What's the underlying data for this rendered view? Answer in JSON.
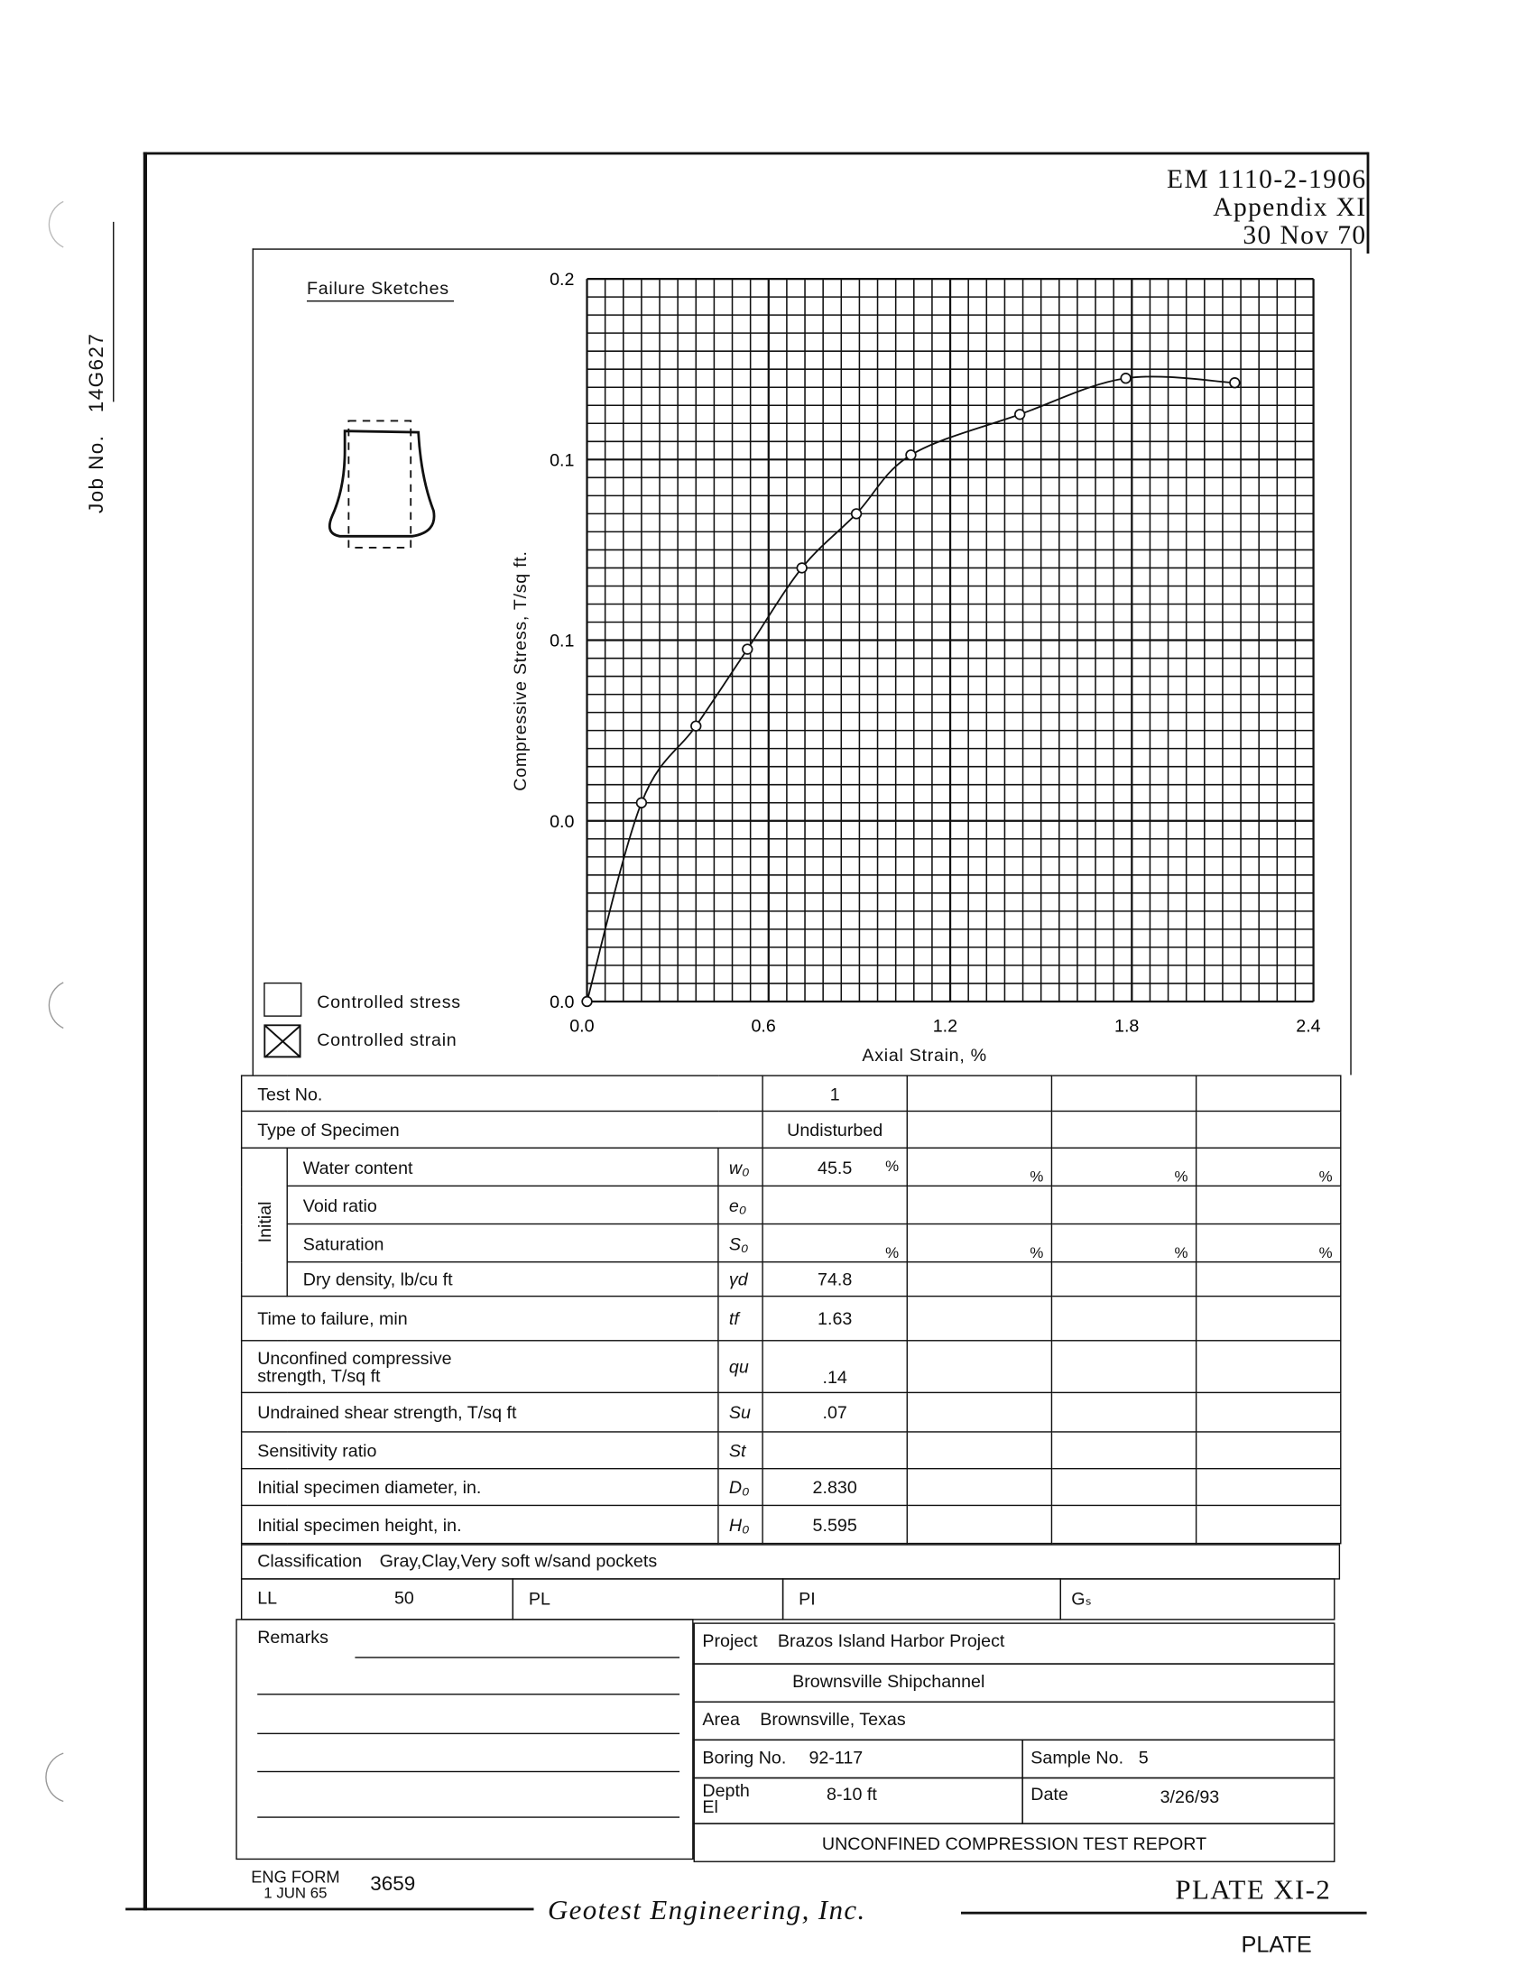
{
  "margin": {
    "job_label": "Job No.",
    "job_number": "14G627"
  },
  "header": {
    "manual": "EM 1110-2-1906",
    "appendix": "Appendix XI",
    "date": "30 Nov 70"
  },
  "failure_sketches": {
    "title": "Failure Sketches"
  },
  "legend": {
    "controlled_stress": "Controlled stress",
    "controlled_strain": "Controlled strain",
    "checked": "controlled_strain"
  },
  "chart_data": {
    "type": "line",
    "xlabel": "Axial Strain, %",
    "ylabel": "Compressive Stress, T/sq ft.",
    "xlim": [
      0,
      2.4
    ],
    "ylim": [
      0,
      0.16
    ],
    "x_ticks": [
      0,
      0.6,
      1.2,
      1.8,
      2.4
    ],
    "x_tick_labels": [
      "0.0",
      "0.6",
      "1.2",
      "1.8",
      "2.4"
    ],
    "y_ticks": [
      0,
      0.04,
      0.08,
      0.12,
      0.16
    ],
    "y_tick_labels": [
      "0.0",
      "0.0",
      "0.1",
      "0.1",
      "0.2"
    ],
    "grid": true,
    "marker": "circle",
    "series": [
      {
        "x": [
          0,
          0.18,
          0.36,
          0.53,
          0.71,
          0.89,
          1.07,
          1.43,
          1.78,
          2.14
        ],
        "y": [
          0,
          0.044,
          0.061,
          0.078,
          0.096,
          0.108,
          0.121,
          0.13,
          0.138,
          0.137
        ]
      }
    ]
  },
  "table": {
    "test_no_label": "Test No.",
    "test_no": [
      "1",
      "",
      "",
      ""
    ],
    "type_label": "Type of Specimen",
    "type": [
      "Undisturbed",
      "",
      "",
      ""
    ],
    "initial_label": "Initial",
    "pct": "%",
    "rows": [
      {
        "label": "Water content",
        "symbol": "w₀",
        "values": [
          "45.5",
          "",
          "",
          ""
        ],
        "percent": true
      },
      {
        "label": "Void ratio",
        "symbol": "e₀",
        "values": [
          "",
          "",
          "",
          ""
        ],
        "percent": false
      },
      {
        "label": "Saturation",
        "symbol": "S₀",
        "values": [
          "",
          "",
          "",
          ""
        ],
        "percent": true
      },
      {
        "label": "Dry density, lb/cu ft",
        "symbol": "γd",
        "values": [
          "74.8",
          "",
          "",
          ""
        ],
        "percent": false
      },
      {
        "label": "Time to failure, min",
        "symbol": "tf",
        "values": [
          "1.63",
          "",
          "",
          ""
        ]
      },
      {
        "label": "Unconfined compressive",
        "label2": "strength, T/sq ft",
        "symbol": "qu",
        "values": [
          ".14",
          "",
          "",
          ""
        ]
      },
      {
        "label": "Undrained shear strength, T/sq ft",
        "symbol": "Su",
        "values": [
          ".07",
          "",
          "",
          ""
        ]
      },
      {
        "label": "Sensitivity ratio",
        "symbol": "St",
        "values": [
          "",
          "",
          "",
          ""
        ]
      },
      {
        "label": "Initial specimen diameter, in.",
        "symbol": "D₀",
        "values": [
          "2.830",
          "",
          "",
          ""
        ]
      },
      {
        "label": "Initial specimen height, in.",
        "symbol": "H₀",
        "values": [
          "5.595",
          "",
          "",
          ""
        ]
      }
    ],
    "classification_label": "Classification",
    "classification": "Gray,Clay,Very soft w/sand pockets",
    "ll_label": "LL",
    "ll": "50",
    "pl_label": "PL",
    "pi_label": "PI",
    "gs_label": "Gₛ"
  },
  "footer": {
    "remarks_label": "Remarks",
    "project_label": "Project",
    "project": "Brazos Island Harbor Project",
    "project_line2": "Brownsville Shipchannel",
    "area_label": "Area",
    "area": "Brownsville, Texas",
    "boring_label": "Boring No.",
    "boring": "92-117",
    "sample_label": "Sample No.",
    "sample": "5",
    "depth_label": "Depth",
    "el_label": "El",
    "depth": "8-10 ft",
    "date_label": "Date",
    "date": "3/26/93",
    "report_title": "UNCONFINED COMPRESSION TEST REPORT",
    "form_line1": "ENG FORM",
    "form_line2": "1 JUN 65",
    "form_number": "3659",
    "plate": "PLATE XI-2",
    "company": "Geotest Engineering, Inc.",
    "plate_small": "PLATE"
  }
}
